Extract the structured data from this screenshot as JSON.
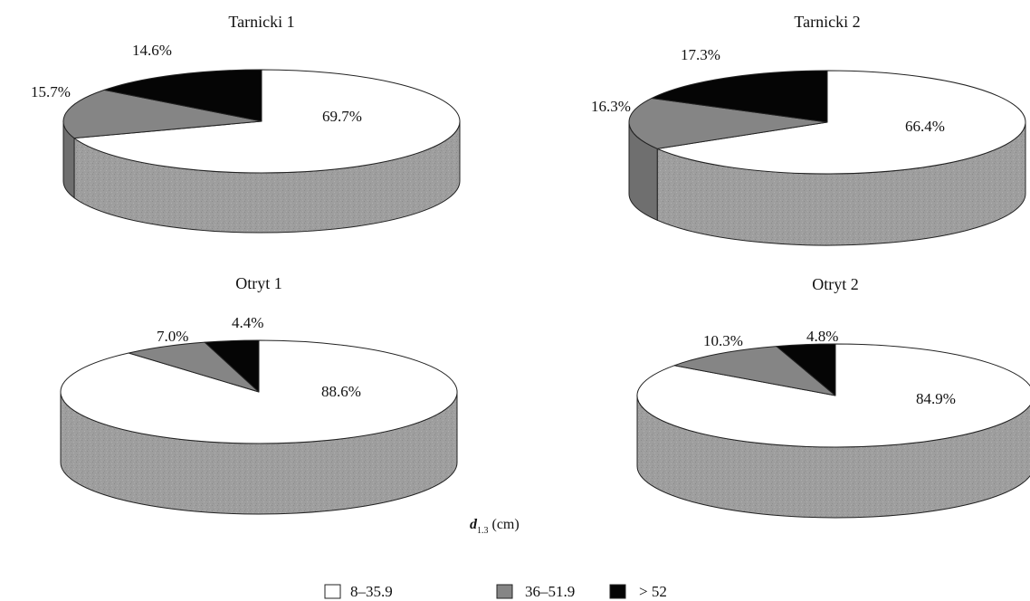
{
  "legend_title": {
    "symbol": "d",
    "subscript": "1.3",
    "unit": "(cm)"
  },
  "colors": {
    "light": "#ffffff",
    "medium": "#858585",
    "dark": "#050505",
    "side": "#9d9d9d",
    "outline": "#222222"
  },
  "chart_data": [
    {
      "type": "pie",
      "title": "Tarnicki 1",
      "categories": [
        "8–35.9",
        "36–51.9",
        "> 52"
      ],
      "values": [
        69.7,
        15.7,
        14.6
      ],
      "labels": [
        "69.7%",
        "15.7%",
        "14.6%"
      ],
      "legend": "bottom"
    },
    {
      "type": "pie",
      "title": "Tarnicki 2",
      "categories": [
        "8–35.9",
        "36–51.9",
        "> 52"
      ],
      "values": [
        66.4,
        16.3,
        17.3
      ],
      "labels": [
        "66.4%",
        "16.3%",
        "17.3%"
      ],
      "legend": "bottom"
    },
    {
      "type": "pie",
      "title": "Otryt 1",
      "categories": [
        "8–35.9",
        "36–51.9",
        "> 52"
      ],
      "values": [
        88.6,
        7.0,
        4.4
      ],
      "labels": [
        "88.6%",
        "7.0%",
        "4.4%"
      ],
      "legend": "bottom"
    },
    {
      "type": "pie",
      "title": "Otryt 2",
      "categories": [
        "8–35.9",
        "36–51.9",
        "> 52"
      ],
      "values": [
        84.9,
        10.3,
        4.8
      ],
      "labels": [
        "84.9%",
        "10.3%",
        "4.8%"
      ],
      "legend": "bottom"
    }
  ]
}
